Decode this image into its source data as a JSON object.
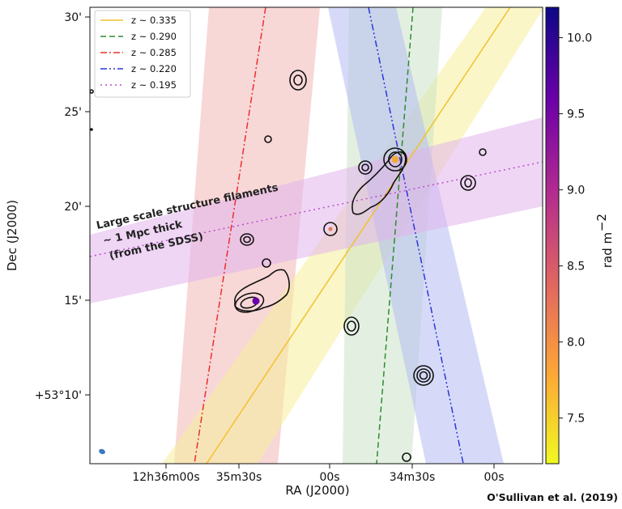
{
  "chart_data": {
    "type": "scatter",
    "xlabel": "RA (J2000)",
    "ylabel": "Dec (J2000)",
    "x_ticks": [
      "12h36m00s",
      "35m30s",
      "00s",
      "34m30s",
      "00s"
    ],
    "y_ticks": [
      "+53°10'",
      "15'",
      "20'",
      "25'",
      "30'"
    ],
    "series": [
      {
        "name": "z ~ 0.335",
        "color": "#f2c12e",
        "dash": "solid"
      },
      {
        "name": "z ~ 0.290",
        "color": "#2e8b2e",
        "dash": "dashed"
      },
      {
        "name": "z ~ 0.285",
        "color": "#e8302c",
        "dash": "dashdot"
      },
      {
        "name": "z ~ 0.220",
        "color": "#2a35d8",
        "dash": "dashdotdot"
      },
      {
        "name": "z ~ 0.195",
        "color": "#b84fc8",
        "dash": "dotted"
      }
    ],
    "band_colors": {
      "z ~ 0.335": "#f6ef9a",
      "z ~ 0.290": "#c7e2c4",
      "z ~ 0.285": "#f3b6b6",
      "z ~ 0.220": "#b5bcf2",
      "z ~ 0.195": "#e1b5ec"
    },
    "colorbar": {
      "label": "rad m$^{-2}$",
      "ticks": [
        "7.5",
        "8.0",
        "8.5",
        "9.0",
        "9.5",
        "10.0"
      ],
      "tick_values": [
        7.5,
        8.0,
        8.5,
        9.0,
        9.5,
        10.0
      ],
      "range": [
        7.2,
        10.2
      ],
      "colormap": "plasma_r",
      "stops": [
        "#f0f921",
        "#fca636",
        "#e16462",
        "#b12a90",
        "#6a00a8",
        "#0d0887"
      ]
    },
    "annotation_lines": [
      "Large scale structure filaments",
      "~ 1 Mpc thick",
      "(from the SDSS)"
    ],
    "credit": "O'Sullivan et al. (2019)",
    "grid": false,
    "legend_position": "top-left"
  }
}
